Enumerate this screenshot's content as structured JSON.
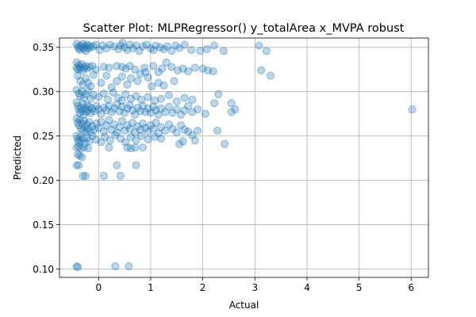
{
  "chart_data": {
    "type": "scatter",
    "title": "Scatter Plot: MLPRegressor() y_totalArea x_MVPA robust",
    "xlabel": "Actual",
    "ylabel": "Predicted",
    "xlim": [
      -0.75,
      6.33
    ],
    "ylim": [
      0.0905,
      0.3605
    ],
    "xticks": [
      0,
      1,
      2,
      3,
      4,
      5,
      6
    ],
    "xtick_labels": [
      "0",
      "1",
      "2",
      "3",
      "4",
      "5",
      "6"
    ],
    "yticks": [
      0.1,
      0.15,
      0.2,
      0.25,
      0.3,
      0.35
    ],
    "ytick_labels": [
      "0.10",
      "0.15",
      "0.20",
      "0.25",
      "0.30",
      "0.35"
    ],
    "grid": true,
    "marker_color": "#1f77b4",
    "marker_alpha": 0.3,
    "series": [
      {
        "points": [
          [
            -0.42,
            0.354
          ],
          [
            -0.4,
            0.351
          ],
          [
            -0.38,
            0.349
          ],
          [
            -0.36,
            0.347
          ],
          [
            -0.34,
            0.352
          ],
          [
            -0.32,
            0.35
          ],
          [
            -0.3,
            0.354
          ],
          [
            -0.28,
            0.348
          ],
          [
            -0.26,
            0.351
          ],
          [
            -0.24,
            0.346
          ],
          [
            -0.22,
            0.353
          ],
          [
            -0.2,
            0.349
          ],
          [
            -0.18,
            0.352
          ],
          [
            -0.15,
            0.35
          ],
          [
            -0.1,
            0.351
          ],
          [
            -0.05,
            0.353
          ],
          [
            0.02,
            0.347
          ],
          [
            0.08,
            0.352
          ],
          [
            0.15,
            0.349
          ],
          [
            0.22,
            0.353
          ],
          [
            0.3,
            0.351
          ],
          [
            0.38,
            0.348
          ],
          [
            0.42,
            0.352
          ],
          [
            0.46,
            0.355
          ],
          [
            0.5,
            0.35
          ],
          [
            0.55,
            0.347
          ],
          [
            0.6,
            0.353
          ],
          [
            0.66,
            0.349
          ],
          [
            0.72,
            0.352
          ],
          [
            0.78,
            0.346
          ],
          [
            0.85,
            0.351
          ],
          [
            0.92,
            0.353
          ],
          [
            1.0,
            0.349
          ],
          [
            1.05,
            0.347
          ],
          [
            1.1,
            0.352
          ],
          [
            1.18,
            0.35
          ],
          [
            1.25,
            0.348
          ],
          [
            1.32,
            0.351
          ],
          [
            1.4,
            0.346
          ],
          [
            1.48,
            0.352
          ],
          [
            1.55,
            0.349
          ],
          [
            1.65,
            0.353
          ],
          [
            1.78,
            0.347
          ],
          [
            1.95,
            0.346
          ],
          [
            2.08,
            0.348
          ],
          [
            2.22,
            0.352
          ],
          [
            2.4,
            0.346
          ],
          [
            3.08,
            0.352
          ],
          [
            3.22,
            0.346
          ],
          [
            -0.42,
            0.333
          ],
          [
            -0.38,
            0.33
          ],
          [
            -0.35,
            0.328
          ],
          [
            -0.32,
            0.331
          ],
          [
            -0.28,
            0.327
          ],
          [
            -0.25,
            0.329
          ],
          [
            -0.42,
            0.327
          ],
          [
            -0.4,
            0.325
          ],
          [
            -0.36,
            0.326
          ],
          [
            -0.3,
            0.324
          ],
          [
            -0.22,
            0.326
          ],
          [
            -0.18,
            0.328
          ],
          [
            -0.12,
            0.329
          ],
          [
            -0.05,
            0.325
          ],
          [
            0.1,
            0.328
          ],
          [
            0.2,
            0.327
          ],
          [
            0.35,
            0.329
          ],
          [
            0.45,
            0.328
          ],
          [
            0.52,
            0.326
          ],
          [
            0.6,
            0.329
          ],
          [
            0.7,
            0.325
          ],
          [
            0.8,
            0.32
          ],
          [
            0.88,
            0.327
          ],
          [
            0.95,
            0.316
          ],
          [
            1.05,
            0.329
          ],
          [
            1.15,
            0.322
          ],
          [
            1.22,
            0.326
          ],
          [
            1.3,
            0.333
          ],
          [
            1.4,
            0.328
          ],
          [
            1.52,
            0.324
          ],
          [
            1.62,
            0.326
          ],
          [
            1.72,
            0.323
          ],
          [
            1.85,
            0.327
          ],
          [
            2.0,
            0.326
          ],
          [
            2.1,
            0.324
          ],
          [
            2.2,
            0.323
          ],
          [
            3.12,
            0.324
          ],
          [
            3.3,
            0.318
          ],
          [
            -0.4,
            0.318
          ],
          [
            -0.35,
            0.312
          ],
          [
            -0.3,
            0.308
          ],
          [
            -0.25,
            0.315
          ],
          [
            -0.2,
            0.31
          ],
          [
            -0.15,
            0.306
          ],
          [
            -0.1,
            0.319
          ],
          [
            0.05,
            0.31
          ],
          [
            0.15,
            0.318
          ],
          [
            0.25,
            0.305
          ],
          [
            0.35,
            0.312
          ],
          [
            0.45,
            0.317
          ],
          [
            0.55,
            0.308
          ],
          [
            0.62,
            0.315
          ],
          [
            0.75,
            0.312
          ],
          [
            0.9,
            0.322
          ],
          [
            1.02,
            0.306
          ],
          [
            1.15,
            0.31
          ],
          [
            1.25,
            0.307
          ],
          [
            1.45,
            0.312
          ],
          [
            -0.42,
            0.302
          ],
          [
            -0.38,
            0.298
          ],
          [
            -0.35,
            0.295
          ],
          [
            -0.32,
            0.3
          ],
          [
            -0.28,
            0.293
          ],
          [
            -0.25,
            0.297
          ],
          [
            -0.2,
            0.301
          ],
          [
            -0.15,
            0.292
          ],
          [
            -0.1,
            0.296
          ],
          [
            0.0,
            0.294
          ],
          [
            0.1,
            0.298
          ],
          [
            0.18,
            0.291
          ],
          [
            0.28,
            0.299
          ],
          [
            0.38,
            0.293
          ],
          [
            0.45,
            0.29
          ],
          [
            0.52,
            0.297
          ],
          [
            0.62,
            0.292
          ],
          [
            0.72,
            0.295
          ],
          [
            0.82,
            0.291
          ],
          [
            0.95,
            0.294
          ],
          [
            1.08,
            0.29
          ],
          [
            1.2,
            0.292
          ],
          [
            1.35,
            0.296
          ],
          [
            1.5,
            0.289
          ],
          [
            1.65,
            0.293
          ],
          [
            1.8,
            0.291
          ],
          [
            2.3,
            0.297
          ],
          [
            2.55,
            0.287
          ],
          [
            2.62,
            0.28
          ],
          [
            2.55,
            0.277
          ],
          [
            6.02,
            0.28
          ],
          [
            -0.42,
            0.288
          ],
          [
            -0.4,
            0.284
          ],
          [
            -0.38,
            0.28
          ],
          [
            -0.36,
            0.276
          ],
          [
            -0.34,
            0.282
          ],
          [
            -0.32,
            0.278
          ],
          [
            -0.3,
            0.286
          ],
          [
            -0.28,
            0.274
          ],
          [
            -0.26,
            0.281
          ],
          [
            -0.24,
            0.277
          ],
          [
            -0.22,
            0.285
          ],
          [
            -0.2,
            0.279
          ],
          [
            -0.18,
            0.283
          ],
          [
            -0.15,
            0.276
          ],
          [
            -0.12,
            0.281
          ],
          [
            -0.08,
            0.278
          ],
          [
            -0.04,
            0.284
          ],
          [
            0.0,
            0.28
          ],
          [
            0.05,
            0.275
          ],
          [
            0.1,
            0.282
          ],
          [
            0.15,
            0.279
          ],
          [
            0.2,
            0.284
          ],
          [
            0.25,
            0.277
          ],
          [
            0.3,
            0.281
          ],
          [
            0.35,
            0.286
          ],
          [
            0.4,
            0.278
          ],
          [
            0.45,
            0.283
          ],
          [
            0.5,
            0.276
          ],
          [
            0.55,
            0.281
          ],
          [
            0.6,
            0.285
          ],
          [
            0.65,
            0.279
          ],
          [
            0.7,
            0.274
          ],
          [
            0.75,
            0.282
          ],
          [
            0.8,
            0.278
          ],
          [
            0.85,
            0.284
          ],
          [
            0.9,
            0.277
          ],
          [
            0.95,
            0.281
          ],
          [
            1.0,
            0.276
          ],
          [
            1.05,
            0.283
          ],
          [
            1.1,
            0.279
          ],
          [
            1.15,
            0.274
          ],
          [
            1.2,
            0.281
          ],
          [
            1.28,
            0.277
          ],
          [
            1.35,
            0.283
          ],
          [
            1.42,
            0.276
          ],
          [
            1.5,
            0.28
          ],
          [
            1.58,
            0.274
          ],
          [
            1.65,
            0.279
          ],
          [
            1.72,
            0.284
          ],
          [
            1.8,
            0.277
          ],
          [
            1.9,
            0.28
          ],
          [
            2.05,
            0.275
          ],
          [
            2.22,
            0.287
          ],
          [
            -0.42,
            0.27
          ],
          [
            -0.4,
            0.265
          ],
          [
            -0.38,
            0.262
          ],
          [
            -0.36,
            0.268
          ],
          [
            -0.34,
            0.258
          ],
          [
            -0.32,
            0.264
          ],
          [
            -0.3,
            0.256
          ],
          [
            -0.28,
            0.267
          ],
          [
            -0.26,
            0.26
          ],
          [
            -0.24,
            0.255
          ],
          [
            -0.22,
            0.263
          ],
          [
            -0.2,
            0.258
          ],
          [
            -0.18,
            0.266
          ],
          [
            -0.15,
            0.254
          ],
          [
            -0.12,
            0.261
          ],
          [
            -0.08,
            0.257
          ],
          [
            -0.04,
            0.264
          ],
          [
            0.0,
            0.259
          ],
          [
            0.05,
            0.266
          ],
          [
            0.1,
            0.255
          ],
          [
            0.15,
            0.262
          ],
          [
            0.2,
            0.268
          ],
          [
            0.25,
            0.257
          ],
          [
            0.3,
            0.263
          ],
          [
            0.35,
            0.254
          ],
          [
            0.4,
            0.26
          ],
          [
            0.45,
            0.267
          ],
          [
            0.5,
            0.256
          ],
          [
            0.55,
            0.262
          ],
          [
            0.6,
            0.258
          ],
          [
            0.65,
            0.265
          ],
          [
            0.7,
            0.254
          ],
          [
            0.75,
            0.261
          ],
          [
            0.8,
            0.257
          ],
          [
            0.85,
            0.264
          ],
          [
            0.9,
            0.259
          ],
          [
            0.95,
            0.255
          ],
          [
            1.0,
            0.262
          ],
          [
            1.05,
            0.258
          ],
          [
            1.1,
            0.265
          ],
          [
            1.15,
            0.253
          ],
          [
            1.2,
            0.26
          ],
          [
            1.28,
            0.256
          ],
          [
            1.35,
            0.263
          ],
          [
            1.42,
            0.258
          ],
          [
            1.5,
            0.254
          ],
          [
            1.58,
            0.262
          ],
          [
            1.65,
            0.257
          ],
          [
            1.72,
            0.255
          ],
          [
            1.8,
            0.251
          ],
          [
            1.9,
            0.256
          ],
          [
            2.28,
            0.256
          ],
          [
            -0.42,
            0.25
          ],
          [
            -0.4,
            0.246
          ],
          [
            -0.38,
            0.243
          ],
          [
            -0.36,
            0.249
          ],
          [
            -0.34,
            0.245
          ],
          [
            -0.3,
            0.247
          ],
          [
            -0.26,
            0.242
          ],
          [
            -0.22,
            0.248
          ],
          [
            -0.18,
            0.244
          ],
          [
            -0.12,
            0.25
          ],
          [
            -0.05,
            0.246
          ],
          [
            0.05,
            0.243
          ],
          [
            0.12,
            0.249
          ],
          [
            0.22,
            0.245
          ],
          [
            0.32,
            0.251
          ],
          [
            0.42,
            0.247
          ],
          [
            0.52,
            0.243
          ],
          [
            0.62,
            0.249
          ],
          [
            0.72,
            0.245
          ],
          [
            0.82,
            0.25
          ],
          [
            0.95,
            0.246
          ],
          [
            1.08,
            0.249
          ],
          [
            1.2,
            0.247
          ],
          [
            1.55,
            0.241
          ],
          [
            1.62,
            0.244
          ],
          [
            1.85,
            0.245
          ],
          [
            2.42,
            0.241
          ],
          [
            -0.42,
            0.237
          ],
          [
            -0.38,
            0.238
          ],
          [
            -0.34,
            0.236
          ],
          [
            -0.28,
            0.237
          ],
          [
            -0.2,
            0.236
          ],
          [
            0.2,
            0.237
          ],
          [
            0.55,
            0.237
          ],
          [
            0.62,
            0.236
          ],
          [
            0.7,
            0.237
          ],
          [
            0.85,
            0.237
          ],
          [
            -0.4,
            0.229
          ],
          [
            -0.36,
            0.228
          ],
          [
            -0.32,
            0.226
          ],
          [
            -0.42,
            0.217
          ],
          [
            -0.38,
            0.217
          ],
          [
            0.35,
            0.217
          ],
          [
            0.72,
            0.217
          ],
          [
            -0.3,
            0.205
          ],
          [
            -0.25,
            0.205
          ],
          [
            0.1,
            0.205
          ],
          [
            0.42,
            0.205
          ],
          [
            -0.42,
            0.103
          ],
          [
            -0.4,
            0.102
          ],
          [
            0.32,
            0.103
          ],
          [
            0.58,
            0.103
          ]
        ]
      }
    ]
  }
}
